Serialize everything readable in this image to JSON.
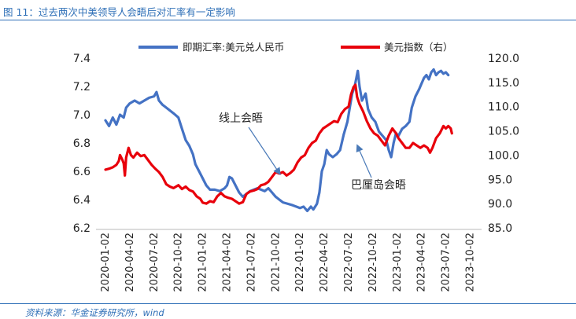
{
  "figure": {
    "title": "图 11：过去两次中美领导人会晤后对汇率有一定影响",
    "source": "资料来源：华金证券研究所，wind"
  },
  "chart_data": {
    "type": "line",
    "x_ticks": [
      "2020-01-02",
      "2020-04-02",
      "2020-07-02",
      "2020-10-02",
      "2021-01-02",
      "2021-04-02",
      "2021-07-02",
      "2021-10-02",
      "2022-01-02",
      "2022-04-02",
      "2022-07-02",
      "2022-10-02",
      "2023-01-02",
      "2023-04-02",
      "2023-07-02",
      "2023-10-02"
    ],
    "y_left": {
      "ticks": [
        "6.2",
        "6.4",
        "6.6",
        "6.8",
        "7.0",
        "7.2",
        "7.4"
      ],
      "range": [
        6.2,
        7.4
      ]
    },
    "y_right": {
      "ticks": [
        "85.0",
        "90.0",
        "95.0",
        "100.0",
        "105.0",
        "110.0",
        "115.0",
        "120.0"
      ],
      "range": [
        85,
        120
      ]
    },
    "colors": {
      "cny": "#4472c4",
      "dxy": "#e8000b"
    },
    "series": [
      {
        "name": "即期汇率:美元兑人民币",
        "axis": "left",
        "key": "cny",
        "points": [
          [
            0,
            6.96
          ],
          [
            0.15,
            6.92
          ],
          [
            0.3,
            6.98
          ],
          [
            0.45,
            6.93
          ],
          [
            0.6,
            7.0
          ],
          [
            0.75,
            6.98
          ],
          [
            0.85,
            7.05
          ],
          [
            1.0,
            7.08
          ],
          [
            1.2,
            7.1
          ],
          [
            1.4,
            7.08
          ],
          [
            1.6,
            7.1
          ],
          [
            1.8,
            7.12
          ],
          [
            2.0,
            7.13
          ],
          [
            2.1,
            7.16
          ],
          [
            2.2,
            7.1
          ],
          [
            2.35,
            7.07
          ],
          [
            2.5,
            7.05
          ],
          [
            2.65,
            7.03
          ],
          [
            2.8,
            7.01
          ],
          [
            3.0,
            6.98
          ],
          [
            3.15,
            6.9
          ],
          [
            3.3,
            6.82
          ],
          [
            3.45,
            6.78
          ],
          [
            3.6,
            6.72
          ],
          [
            3.7,
            6.65
          ],
          [
            3.85,
            6.6
          ],
          [
            4.0,
            6.55
          ],
          [
            4.15,
            6.5
          ],
          [
            4.3,
            6.47
          ],
          [
            4.5,
            6.47
          ],
          [
            4.7,
            6.46
          ],
          [
            4.9,
            6.48
          ],
          [
            5.0,
            6.5
          ],
          [
            5.1,
            6.56
          ],
          [
            5.2,
            6.55
          ],
          [
            5.35,
            6.5
          ],
          [
            5.5,
            6.45
          ],
          [
            5.65,
            6.42
          ],
          [
            5.8,
            6.44
          ],
          [
            5.95,
            6.46
          ],
          [
            6.1,
            6.47
          ],
          [
            6.25,
            6.48
          ],
          [
            6.4,
            6.47
          ],
          [
            6.55,
            6.46
          ],
          [
            6.7,
            6.48
          ],
          [
            6.85,
            6.45
          ],
          [
            7.0,
            6.42
          ],
          [
            7.15,
            6.4
          ],
          [
            7.3,
            6.38
          ],
          [
            7.5,
            6.37
          ],
          [
            7.7,
            6.36
          ],
          [
            7.85,
            6.35
          ],
          [
            8.0,
            6.34
          ],
          [
            8.15,
            6.35
          ],
          [
            8.3,
            6.32
          ],
          [
            8.45,
            6.35
          ],
          [
            8.55,
            6.33
          ],
          [
            8.7,
            6.37
          ],
          [
            8.8,
            6.45
          ],
          [
            8.9,
            6.6
          ],
          [
            9.0,
            6.65
          ],
          [
            9.1,
            6.75
          ],
          [
            9.2,
            6.72
          ],
          [
            9.35,
            6.7
          ],
          [
            9.5,
            6.72
          ],
          [
            9.65,
            6.75
          ],
          [
            9.8,
            6.86
          ],
          [
            9.95,
            6.95
          ],
          [
            10.05,
            7.05
          ],
          [
            10.15,
            7.15
          ],
          [
            10.25,
            7.2
          ],
          [
            10.32,
            7.26
          ],
          [
            10.38,
            7.31
          ],
          [
            10.45,
            7.2
          ],
          [
            10.55,
            7.1
          ],
          [
            10.7,
            7.15
          ],
          [
            10.8,
            7.04
          ],
          [
            10.95,
            6.98
          ],
          [
            11.1,
            6.95
          ],
          [
            11.25,
            6.88
          ],
          [
            11.4,
            6.85
          ],
          [
            11.55,
            6.82
          ],
          [
            11.65,
            6.75
          ],
          [
            11.75,
            6.7
          ],
          [
            11.85,
            6.8
          ],
          [
            11.95,
            6.87
          ],
          [
            12.05,
            6.85
          ],
          [
            12.2,
            6.9
          ],
          [
            12.35,
            6.92
          ],
          [
            12.5,
            6.95
          ],
          [
            12.6,
            7.05
          ],
          [
            12.75,
            7.13
          ],
          [
            12.9,
            7.18
          ],
          [
            13.0,
            7.22
          ],
          [
            13.1,
            7.26
          ],
          [
            13.2,
            7.28
          ],
          [
            13.3,
            7.25
          ],
          [
            13.4,
            7.3
          ],
          [
            13.5,
            7.32
          ],
          [
            13.6,
            7.28
          ],
          [
            13.7,
            7.3
          ],
          [
            13.8,
            7.31
          ],
          [
            13.9,
            7.29
          ],
          [
            14.0,
            7.3
          ],
          [
            14.1,
            7.28
          ]
        ]
      },
      {
        "name": "美元指数（右）",
        "axis": "right",
        "key": "dxy",
        "points": [
          [
            0,
            97.0
          ],
          [
            0.15,
            97.2
          ],
          [
            0.3,
            97.5
          ],
          [
            0.45,
            98.0
          ],
          [
            0.55,
            98.8
          ],
          [
            0.6,
            100.0
          ],
          [
            0.7,
            99.0
          ],
          [
            0.75,
            98.3
          ],
          [
            0.8,
            95.8
          ],
          [
            0.85,
            99.5
          ],
          [
            0.95,
            101.5
          ],
          [
            1.05,
            100.0
          ],
          [
            1.15,
            99.5
          ],
          [
            1.3,
            100.5
          ],
          [
            1.45,
            99.8
          ],
          [
            1.6,
            100.0
          ],
          [
            1.75,
            99.0
          ],
          [
            1.9,
            98.0
          ],
          [
            2.05,
            97.2
          ],
          [
            2.2,
            96.5
          ],
          [
            2.35,
            95.5
          ],
          [
            2.5,
            94.0
          ],
          [
            2.65,
            93.5
          ],
          [
            2.8,
            93.2
          ],
          [
            3.0,
            93.8
          ],
          [
            3.15,
            93.0
          ],
          [
            3.3,
            93.5
          ],
          [
            3.45,
            92.8
          ],
          [
            3.6,
            92.5
          ],
          [
            3.75,
            91.5
          ],
          [
            3.9,
            91.0
          ],
          [
            4.0,
            90.2
          ],
          [
            4.15,
            90.0
          ],
          [
            4.3,
            90.5
          ],
          [
            4.45,
            90.3
          ],
          [
            4.6,
            91.5
          ],
          [
            4.75,
            92.2
          ],
          [
            4.9,
            91.5
          ],
          [
            5.05,
            91.2
          ],
          [
            5.2,
            91.0
          ],
          [
            5.35,
            90.5
          ],
          [
            5.5,
            90.0
          ],
          [
            5.65,
            90.3
          ],
          [
            5.8,
            92.0
          ],
          [
            5.95,
            92.5
          ],
          [
            6.1,
            92.7
          ],
          [
            6.25,
            93.0
          ],
          [
            6.4,
            93.8
          ],
          [
            6.55,
            94.0
          ],
          [
            6.7,
            94.5
          ],
          [
            6.85,
            95.5
          ],
          [
            7.0,
            96.5
          ],
          [
            7.15,
            96.2
          ],
          [
            7.3,
            96.5
          ],
          [
            7.45,
            95.8
          ],
          [
            7.6,
            96.3
          ],
          [
            7.75,
            97.0
          ],
          [
            7.9,
            98.5
          ],
          [
            8.05,
            99.5
          ],
          [
            8.2,
            100.0
          ],
          [
            8.35,
            101.5
          ],
          [
            8.5,
            102.5
          ],
          [
            8.65,
            103.0
          ],
          [
            8.8,
            104.5
          ],
          [
            8.95,
            105.5
          ],
          [
            9.1,
            106.0
          ],
          [
            9.25,
            106.5
          ],
          [
            9.4,
            107.0
          ],
          [
            9.55,
            106.8
          ],
          [
            9.7,
            108.5
          ],
          [
            9.85,
            109.5
          ],
          [
            10.0,
            110.0
          ],
          [
            10.1,
            112.5
          ],
          [
            10.2,
            114.0
          ],
          [
            10.28,
            114.5
          ],
          [
            10.35,
            112.0
          ],
          [
            10.45,
            110.5
          ],
          [
            10.6,
            109.0
          ],
          [
            10.75,
            107.0
          ],
          [
            10.9,
            105.5
          ],
          [
            11.05,
            104.5
          ],
          [
            11.2,
            104.0
          ],
          [
            11.35,
            103.0
          ],
          [
            11.5,
            102.0
          ],
          [
            11.65,
            104.0
          ],
          [
            11.8,
            105.5
          ],
          [
            11.95,
            104.5
          ],
          [
            12.05,
            103.5
          ],
          [
            12.2,
            102.5
          ],
          [
            12.35,
            101.5
          ],
          [
            12.5,
            101.5
          ],
          [
            12.65,
            102.5
          ],
          [
            12.8,
            102.0
          ],
          [
            12.95,
            101.5
          ],
          [
            13.1,
            102.0
          ],
          [
            13.25,
            101.5
          ],
          [
            13.35,
            100.5
          ],
          [
            13.45,
            101.5
          ],
          [
            13.6,
            103.5
          ],
          [
            13.75,
            104.5
          ],
          [
            13.9,
            106.0
          ],
          [
            14.0,
            105.5
          ],
          [
            14.1,
            106.0
          ],
          [
            14.2,
            105.5
          ],
          [
            14.25,
            104.5
          ]
        ]
      }
    ],
    "annotations": [
      {
        "text": "线上会晤",
        "x": 7.1,
        "y_left": 6.55
      },
      {
        "text": "巴厘岛会晤",
        "x": 10.3,
        "y_left": 6.78
      }
    ]
  }
}
